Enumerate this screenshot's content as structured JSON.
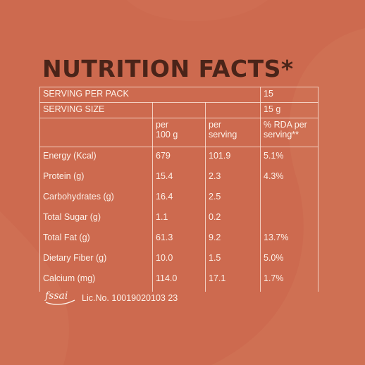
{
  "header": {
    "title": "NUTRITION FACTS*"
  },
  "table": {
    "serving_per_pack": {
      "label": "SERVING PER PACK",
      "value": "15"
    },
    "serving_size": {
      "label": "SERVING SIZE",
      "value": "15 g"
    },
    "columns": {
      "per100_line1": "per",
      "per100_line2": "100 g",
      "perserving_line1": "per",
      "perserving_line2": "serving",
      "rda_line1": "% RDA per",
      "rda_line2": "serving**"
    },
    "rows": [
      {
        "name": "Energy (Kcal)",
        "per100": "679",
        "perserving": "101.9",
        "rda": "5.1%"
      },
      {
        "name": "Protein (g)",
        "per100": "15.4",
        "perserving": "2.3",
        "rda": "4.3%"
      },
      {
        "name": "Carbohydrates (g)",
        "per100": "16.4",
        "perserving": "2.5",
        "rda": ""
      },
      {
        "name": "Total Sugar (g)",
        "per100": "1.1",
        "perserving": "0.2",
        "rda": ""
      },
      {
        "name": "Total Fat (g)",
        "per100": "61.3",
        "perserving": "9.2",
        "rda": "13.7%"
      },
      {
        "name": "Dietary Fiber (g)",
        "per100": "10.0",
        "perserving": "1.5",
        "rda": "5.0%"
      },
      {
        "name": "Calcium (mg)",
        "per100": "114.0",
        "perserving": "17.1",
        "rda": "1.7%"
      }
    ]
  },
  "footer": {
    "logo_text": "fssai",
    "license": "Lic.No. 10019020103 23"
  },
  "colors": {
    "background": "#cd6a4f",
    "title": "#4a2419",
    "text": "#fdf1e8"
  }
}
